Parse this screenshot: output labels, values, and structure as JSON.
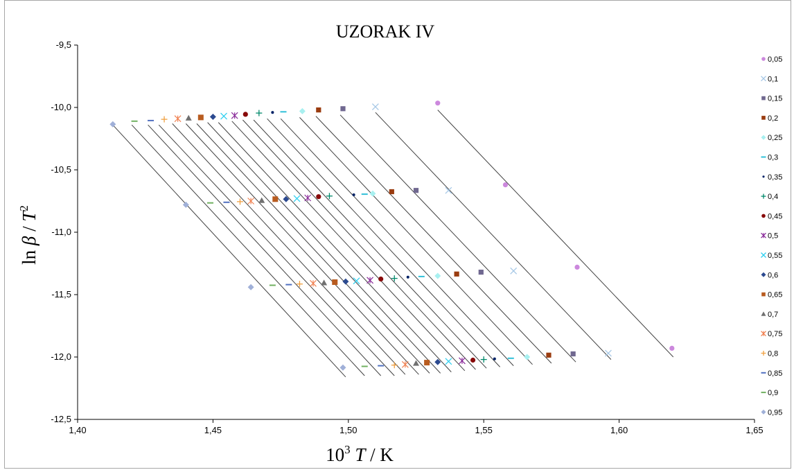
{
  "chart_data": {
    "type": "scatter",
    "title": "UZORAK IV",
    "xlabel_parts": [
      "10",
      "3",
      " ",
      "T",
      " / K"
    ],
    "ylabel_parts": [
      "ln ",
      "β",
      " / ",
      "T",
      "2"
    ],
    "xlim": [
      1.4,
      1.65
    ],
    "ylim": [
      -12.5,
      -9.5
    ],
    "x_ticks": [
      1.4,
      1.45,
      1.5,
      1.55,
      1.6,
      1.65
    ],
    "x_tick_labels": [
      "1,40",
      "1,45",
      "1,50",
      "1,55",
      "1,60",
      "1,65"
    ],
    "y_ticks": [
      -9.5,
      -10.0,
      -10.5,
      -11.0,
      -11.5,
      -12.0,
      -12.5
    ],
    "y_tick_labels": [
      "-9,5",
      "-10,0",
      "-10,5",
      "-11,0",
      "-11,5",
      "-12,0",
      "-12,5"
    ],
    "grid": false,
    "legend_position": "right",
    "series": [
      {
        "name": "0,05",
        "marker": "circle",
        "color": "#cc88dd",
        "x": [
          1.533,
          1.558,
          1.5845,
          1.6195
        ],
        "y": [
          -9.965,
          -10.62,
          -11.28,
          -11.93
        ],
        "fit": [
          [
            1.533,
            -10.02
          ],
          [
            1.62,
            -12.0
          ]
        ]
      },
      {
        "name": "0,1",
        "marker": "x",
        "color": "#a6c8e6",
        "x": [
          1.51,
          1.537,
          1.561,
          1.596
        ],
        "y": [
          -9.995,
          -10.665,
          -11.31,
          -11.97
        ],
        "fit": [
          [
            1.51,
            -10.04
          ],
          [
            1.597,
            -12.02
          ]
        ]
      },
      {
        "name": "0,15",
        "marker": "square",
        "color": "#706890",
        "x": [
          1.498,
          1.525,
          1.549,
          1.583
        ],
        "y": [
          -10.01,
          -10.665,
          -11.32,
          -11.975
        ],
        "fit": [
          [
            1.497,
            -10.06
          ],
          [
            1.584,
            -12.04
          ]
        ]
      },
      {
        "name": "0,2",
        "marker": "square",
        "color": "#9a3c10",
        "x": [
          1.489,
          1.516,
          1.54,
          1.574
        ],
        "y": [
          -10.02,
          -10.675,
          -11.335,
          -11.985
        ],
        "fit": [
          [
            1.488,
            -10.07
          ],
          [
            1.575,
            -12.05
          ]
        ]
      },
      {
        "name": "0,25",
        "marker": "diamond",
        "color": "#a8f0f0",
        "x": [
          1.483,
          1.509,
          1.533,
          1.566
        ],
        "y": [
          -10.03,
          -10.69,
          -11.35,
          -12.0
        ],
        "fit": [
          [
            1.482,
            -10.08
          ],
          [
            1.568,
            -12.06
          ]
        ]
      },
      {
        "name": "0,3",
        "marker": "dash",
        "color": "#30c0d8",
        "x": [
          1.476,
          1.506,
          1.527,
          1.56
        ],
        "y": [
          -10.035,
          -10.695,
          -11.355,
          -12.01
        ],
        "fit": [
          [
            1.475,
            -10.09
          ],
          [
            1.561,
            -12.07
          ]
        ]
      },
      {
        "name": "0,35",
        "marker": "dot",
        "color": "#002266",
        "x": [
          1.472,
          1.502,
          1.522,
          1.554
        ],
        "y": [
          -10.04,
          -10.7,
          -11.36,
          -12.015
        ],
        "fit": [
          [
            1.47,
            -10.09
          ],
          [
            1.556,
            -12.08
          ]
        ]
      },
      {
        "name": "0,4",
        "marker": "plus",
        "color": "#00886a",
        "x": [
          1.467,
          1.493,
          1.517,
          1.55
        ],
        "y": [
          -10.045,
          -10.71,
          -11.37,
          -12.02
        ],
        "fit": [
          [
            1.465,
            -10.1
          ],
          [
            1.551,
            -12.09
          ]
        ]
      },
      {
        "name": "0,45",
        "marker": "circle",
        "color": "#880a0a",
        "x": [
          1.462,
          1.489,
          1.512,
          1.546
        ],
        "y": [
          -10.055,
          -10.715,
          -11.375,
          -12.025
        ],
        "fit": [
          [
            1.461,
            -10.1
          ],
          [
            1.547,
            -12.1
          ]
        ]
      },
      {
        "name": "0,5",
        "marker": "star",
        "color": "#8a2c9a",
        "x": [
          1.458,
          1.485,
          1.508,
          1.542
        ],
        "y": [
          -10.065,
          -10.725,
          -11.385,
          -12.03
        ],
        "fit": [
          [
            1.457,
            -10.11
          ],
          [
            1.543,
            -12.11
          ]
        ]
      },
      {
        "name": "0,55",
        "marker": "x",
        "color": "#30d0f0",
        "x": [
          1.454,
          1.481,
          1.503,
          1.537
        ],
        "y": [
          -10.07,
          -10.73,
          -11.39,
          -12.035
        ],
        "fit": [
          [
            1.452,
            -10.12
          ],
          [
            1.538,
            -12.12
          ]
        ]
      },
      {
        "name": "0,6",
        "marker": "diamond",
        "color": "#2c4a90",
        "x": [
          1.45,
          1.477,
          1.499,
          1.533
        ],
        "y": [
          -10.075,
          -10.735,
          -11.395,
          -12.04
        ],
        "fit": [
          [
            1.448,
            -10.12
          ],
          [
            1.534,
            -12.13
          ]
        ]
      },
      {
        "name": "0,65",
        "marker": "square",
        "color": "#b85c20",
        "x": [
          1.4455,
          1.473,
          1.495,
          1.529
        ],
        "y": [
          -10.08,
          -10.735,
          -11.4,
          -12.045
        ],
        "fit": [
          [
            1.444,
            -10.13
          ],
          [
            1.53,
            -12.13
          ]
        ]
      },
      {
        "name": "0,7",
        "marker": "triangle",
        "color": "#707070",
        "x": [
          1.441,
          1.468,
          1.491,
          1.525
        ],
        "y": [
          -10.085,
          -10.745,
          -11.405,
          -12.05
        ],
        "fit": [
          [
            1.44,
            -10.13
          ],
          [
            1.526,
            -12.14
          ]
        ]
      },
      {
        "name": "0,75",
        "marker": "star",
        "color": "#f08050",
        "x": [
          1.437,
          1.464,
          1.487,
          1.521
        ],
        "y": [
          -10.09,
          -10.75,
          -11.41,
          -12.06
        ],
        "fit": [
          [
            1.435,
            -10.13
          ],
          [
            1.521,
            -12.14
          ]
        ]
      },
      {
        "name": "0,8",
        "marker": "plus",
        "color": "#f0a040",
        "x": [
          1.432,
          1.46,
          1.482,
          1.517
        ],
        "y": [
          -10.095,
          -10.755,
          -11.415,
          -12.065
        ],
        "fit": [
          [
            1.43,
            -10.14
          ],
          [
            1.517,
            -12.15
          ]
        ]
      },
      {
        "name": "0,85",
        "marker": "dash",
        "color": "#5070c0",
        "x": [
          1.427,
          1.455,
          1.478,
          1.512
        ],
        "y": [
          -10.105,
          -10.76,
          -11.42,
          -12.07
        ],
        "fit": [
          [
            1.426,
            -10.14
          ],
          [
            1.512,
            -12.15
          ]
        ]
      },
      {
        "name": "0,9",
        "marker": "dash",
        "color": "#70b060",
        "x": [
          1.421,
          1.449,
          1.472,
          1.506
        ],
        "y": [
          -10.11,
          -10.765,
          -11.425,
          -12.075
        ],
        "fit": [
          [
            1.42,
            -10.14
          ],
          [
            1.506,
            -12.15
          ]
        ]
      },
      {
        "name": "0,95",
        "marker": "diamond",
        "color": "#a0b0d8",
        "x": [
          1.413,
          1.44,
          1.464,
          1.498
        ],
        "y": [
          -10.135,
          -10.78,
          -11.44,
          -12.085
        ],
        "fit": [
          [
            1.413,
            -10.14
          ],
          [
            1.499,
            -12.16
          ]
        ]
      }
    ]
  }
}
